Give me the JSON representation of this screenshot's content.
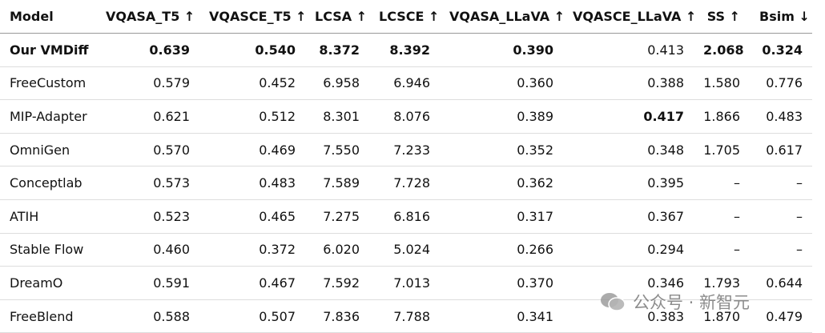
{
  "table": {
    "header": [
      "Model",
      "VQASA_T5 ↑",
      "VQASCE_T5 ↑",
      "LCSA ↑",
      "LCSCE ↑",
      "VQASA_LLaVA ↑",
      "VQASCE_LLaVA ↑",
      "SS ↑",
      "Bsim ↓"
    ],
    "rows": [
      [
        {
          "text": "Our VMDiff",
          "bold": true
        },
        {
          "text": "0.639",
          "bold": true
        },
        {
          "text": "0.540",
          "bold": true
        },
        {
          "text": "8.372",
          "bold": true
        },
        {
          "text": "8.392",
          "bold": true
        },
        {
          "text": "0.390",
          "bold": true
        },
        {
          "text": "0.413"
        },
        {
          "text": "2.068",
          "bold": true
        },
        {
          "text": "0.324",
          "bold": true
        }
      ],
      [
        {
          "text": "FreeCustom"
        },
        {
          "text": "0.579"
        },
        {
          "text": "0.452"
        },
        {
          "text": "6.958"
        },
        {
          "text": "6.946"
        },
        {
          "text": "0.360"
        },
        {
          "text": "0.388"
        },
        {
          "text": "1.580"
        },
        {
          "text": "0.776"
        }
      ],
      [
        {
          "text": "MIP-Adapter"
        },
        {
          "text": "0.621"
        },
        {
          "text": "0.512"
        },
        {
          "text": "8.301"
        },
        {
          "text": "8.076"
        },
        {
          "text": "0.389"
        },
        {
          "text": "0.417",
          "bold": true
        },
        {
          "text": "1.866"
        },
        {
          "text": "0.483"
        }
      ],
      [
        {
          "text": "OmniGen"
        },
        {
          "text": "0.570"
        },
        {
          "text": "0.469"
        },
        {
          "text": "7.550"
        },
        {
          "text": "7.233"
        },
        {
          "text": "0.352"
        },
        {
          "text": "0.348"
        },
        {
          "text": "1.705"
        },
        {
          "text": "0.617"
        }
      ],
      [
        {
          "text": "Conceptlab"
        },
        {
          "text": "0.573"
        },
        {
          "text": "0.483"
        },
        {
          "text": "7.589"
        },
        {
          "text": "7.728"
        },
        {
          "text": "0.362"
        },
        {
          "text": "0.395"
        },
        {
          "text": "–"
        },
        {
          "text": "–"
        }
      ],
      [
        {
          "text": "ATIH"
        },
        {
          "text": "0.523"
        },
        {
          "text": "0.465"
        },
        {
          "text": "7.275"
        },
        {
          "text": "6.816"
        },
        {
          "text": "0.317"
        },
        {
          "text": "0.367"
        },
        {
          "text": "–"
        },
        {
          "text": "–"
        }
      ],
      [
        {
          "text": "Stable Flow"
        },
        {
          "text": "0.460"
        },
        {
          "text": "0.372"
        },
        {
          "text": "6.020"
        },
        {
          "text": "5.024"
        },
        {
          "text": "0.266"
        },
        {
          "text": "0.294"
        },
        {
          "text": "–"
        },
        {
          "text": "–"
        }
      ],
      [
        {
          "text": "DreamO"
        },
        {
          "text": "0.591"
        },
        {
          "text": "0.467"
        },
        {
          "text": "7.592"
        },
        {
          "text": "7.013"
        },
        {
          "text": "0.370"
        },
        {
          "text": "0.346"
        },
        {
          "text": "1.793"
        },
        {
          "text": "0.644"
        }
      ],
      [
        {
          "text": "FreeBlend"
        },
        {
          "text": "0.588"
        },
        {
          "text": "0.507"
        },
        {
          "text": "7.836"
        },
        {
          "text": "7.788"
        },
        {
          "text": "0.341"
        },
        {
          "text": "0.383"
        },
        {
          "text": "1.870"
        },
        {
          "text": "0.479"
        }
      ]
    ]
  },
  "watermark": "公众号 · 新智元"
}
